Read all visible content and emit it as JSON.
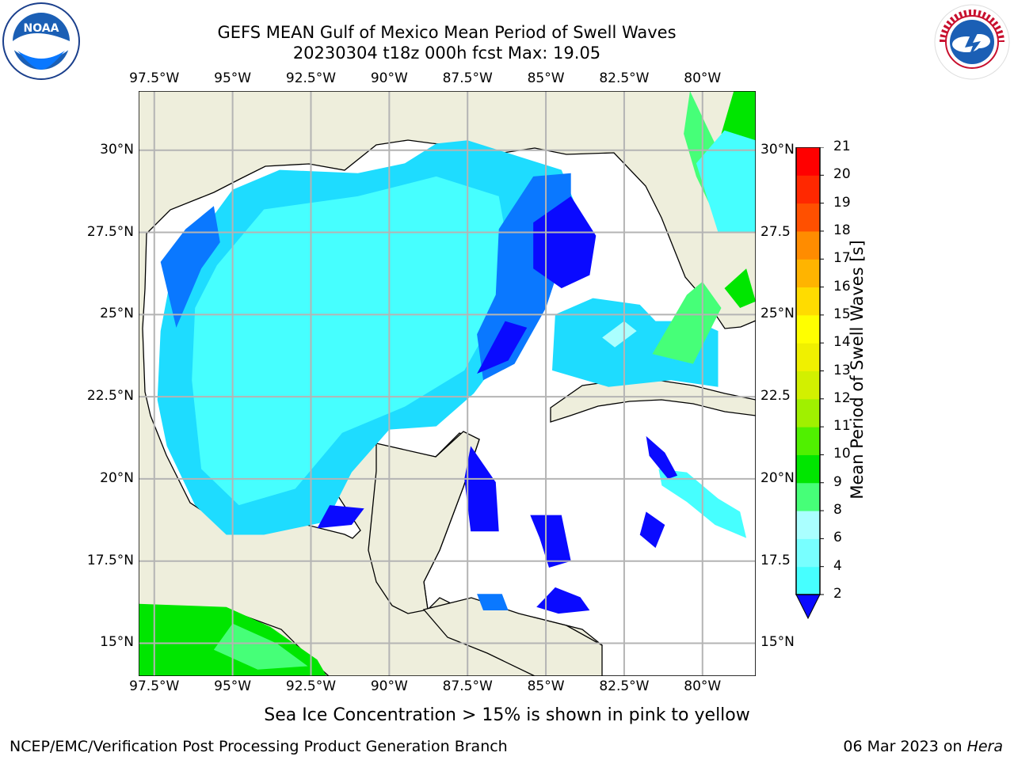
{
  "header": {
    "title_line1": "GEFS MEAN Gulf of Mexico Mean Period of Swell Waves",
    "title_line2": "20230304 t18z 000h fcst   Max: 19.05"
  },
  "logos": {
    "left": {
      "name": "noaa-logo",
      "text": "NOAA"
    },
    "right": {
      "name": "nws-logo",
      "text": "NATIONAL WEATHER SERVICE"
    }
  },
  "map": {
    "lon_labels": [
      "97.5°W",
      "95°W",
      "92.5°W",
      "90°W",
      "87.5°W",
      "85°W",
      "82.5°W",
      "80°W"
    ],
    "lat_labels_left": [
      "30°N",
      "27.5°N",
      "25°N",
      "22.5°N",
      "20°N",
      "17.5°N",
      "15°N"
    ],
    "lat_labels_right": [
      "30°N",
      "27.5",
      "25°N",
      "22.5",
      "20°N",
      "17.5",
      "15°N"
    ],
    "lon_range": [
      -98,
      -78.3
    ],
    "lat_range": [
      14,
      31.8
    ],
    "colors": {
      "land": "#eeeedc",
      "ocean_no_data": "#ffffff",
      "grid": "#b4b4b4"
    }
  },
  "colorbar": {
    "label": "Mean Period of Swell Waves [s]",
    "ticks": [
      "2",
      "4",
      "6",
      "8",
      "9",
      "10",
      "11",
      "12",
      "13",
      "14",
      "15",
      "16",
      "17",
      "18",
      "19",
      "20",
      "21"
    ],
    "colors": [
      "#0a0aff",
      "#0a78ff",
      "#1edcff",
      "#46ffff",
      "#78ffff",
      "#aaffff",
      "#46ff78",
      "#00e600",
      "#50f000",
      "#a0f000",
      "#d2f000",
      "#f0f000",
      "#ffff00",
      "#ffdc00",
      "#ffb400",
      "#ff8c00",
      "#ff5000",
      "#ff2800",
      "#ff0000"
    ]
  },
  "footer": {
    "caption": "Sea Ice Concentration > 15% is shown in pink to yellow",
    "left": "NCEP/EMC/Verification Post Processing Product Generation Branch",
    "right_date": "06 Mar 2023 on ",
    "right_host": "Hera"
  }
}
